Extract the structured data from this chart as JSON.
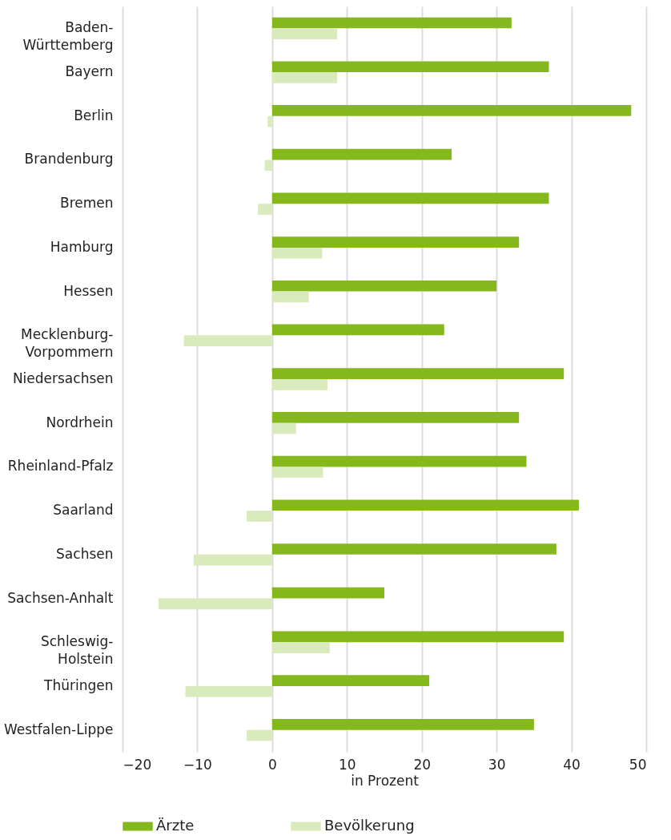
{
  "chart_data": {
    "type": "bar",
    "orientation": "horizontal",
    "xlabel": "in Prozent",
    "categories": [
      "Baden-Württemberg",
      "Bayern",
      "Berlin",
      "Brandenburg",
      "Bremen",
      "Hamburg",
      "Hessen",
      "Mecklenburg-Vorpommern",
      "Niedersachsen",
      "Nordrhein",
      "Rheinland-Pfalz",
      "Saarland",
      "Sachsen",
      "Sachsen-Anhalt",
      "Schleswig-Holstein",
      "Thüringen",
      "Westfalen-Lippe"
    ],
    "series": [
      {
        "name": "Ärzte",
        "color": "#84b81c",
        "values": [
          32,
          37,
          48,
          24,
          37,
          33,
          30,
          23,
          39,
          33,
          34,
          41,
          38,
          15,
          39,
          21,
          35
        ]
      },
      {
        "name": "Bevölkerung",
        "color": "#d9eabd",
        "values": [
          8.7,
          8.7,
          -0.6,
          -1.0,
          -1.9,
          6.7,
          4.9,
          -11.8,
          7.4,
          3.2,
          6.8,
          -3.4,
          -10.5,
          -15.2,
          7.7,
          -11.6,
          -3.4
        ]
      }
    ],
    "xlim": [
      -20,
      50
    ],
    "xticks": [
      -20,
      -10,
      0,
      10,
      20,
      30,
      40,
      50
    ],
    "grid": "x",
    "legend": "bottom"
  }
}
